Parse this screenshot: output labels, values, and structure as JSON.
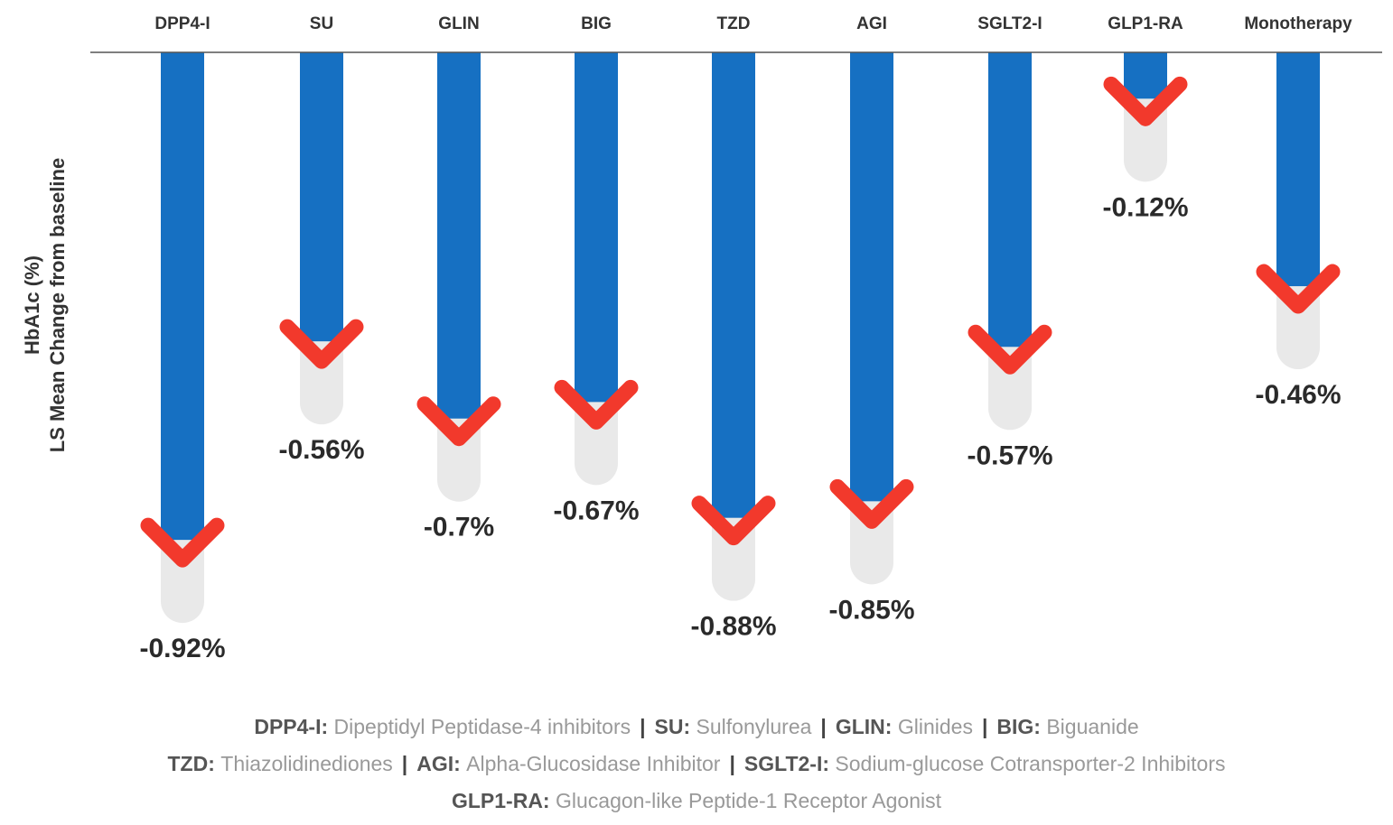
{
  "chart_data": {
    "type": "bar",
    "title": "",
    "ylabel_line1": "HbA1c (%)",
    "ylabel_line2": "LS Mean Change from baseline",
    "categories": [
      "DPP4-I",
      "SU",
      "GLIN",
      "BIG",
      "TZD",
      "AGI",
      "SGLT2-I",
      "GLP1-RA",
      "Monotherapy"
    ],
    "values": [
      -0.92,
      -0.56,
      -0.7,
      -0.67,
      -0.88,
      -0.85,
      -0.57,
      -0.12,
      -0.46
    ],
    "value_labels": [
      "-0.92%",
      "-0.56%",
      "-0.7%",
      "-0.67%",
      "-0.88%",
      "-0.85%",
      "-0.57%",
      "-0.12%",
      "-0.46%"
    ],
    "ylim": [
      -1.0,
      0
    ],
    "grid": false,
    "colors": {
      "bar": "#1670c2",
      "arrow": "#f2392c",
      "shadow": "#e9e9e9",
      "baseline": "#555555"
    }
  },
  "legend": [
    [
      {
        "abbr": "DPP4-I:",
        "full": "Dipeptidyl Peptidase-4 inhibitors"
      },
      {
        "abbr": "SU:",
        "full": "Sulfonylurea"
      },
      {
        "abbr": "GLIN:",
        "full": "Glinides"
      },
      {
        "abbr": "BIG:",
        "full": "Biguanide"
      }
    ],
    [
      {
        "abbr": "TZD:",
        "full": "Thiazolidinediones"
      },
      {
        "abbr": "AGI:",
        "full": "Alpha-Glucosidase Inhibitor"
      },
      {
        "abbr": "SGLT2-I:",
        "full": "Sodium-glucose Cotransporter-2 Inhibitors"
      }
    ],
    [
      {
        "abbr": "GLP1-RA:",
        "full": "Glucagon-like Peptide-1 Receptor Agonist"
      }
    ]
  ],
  "separator": "|"
}
